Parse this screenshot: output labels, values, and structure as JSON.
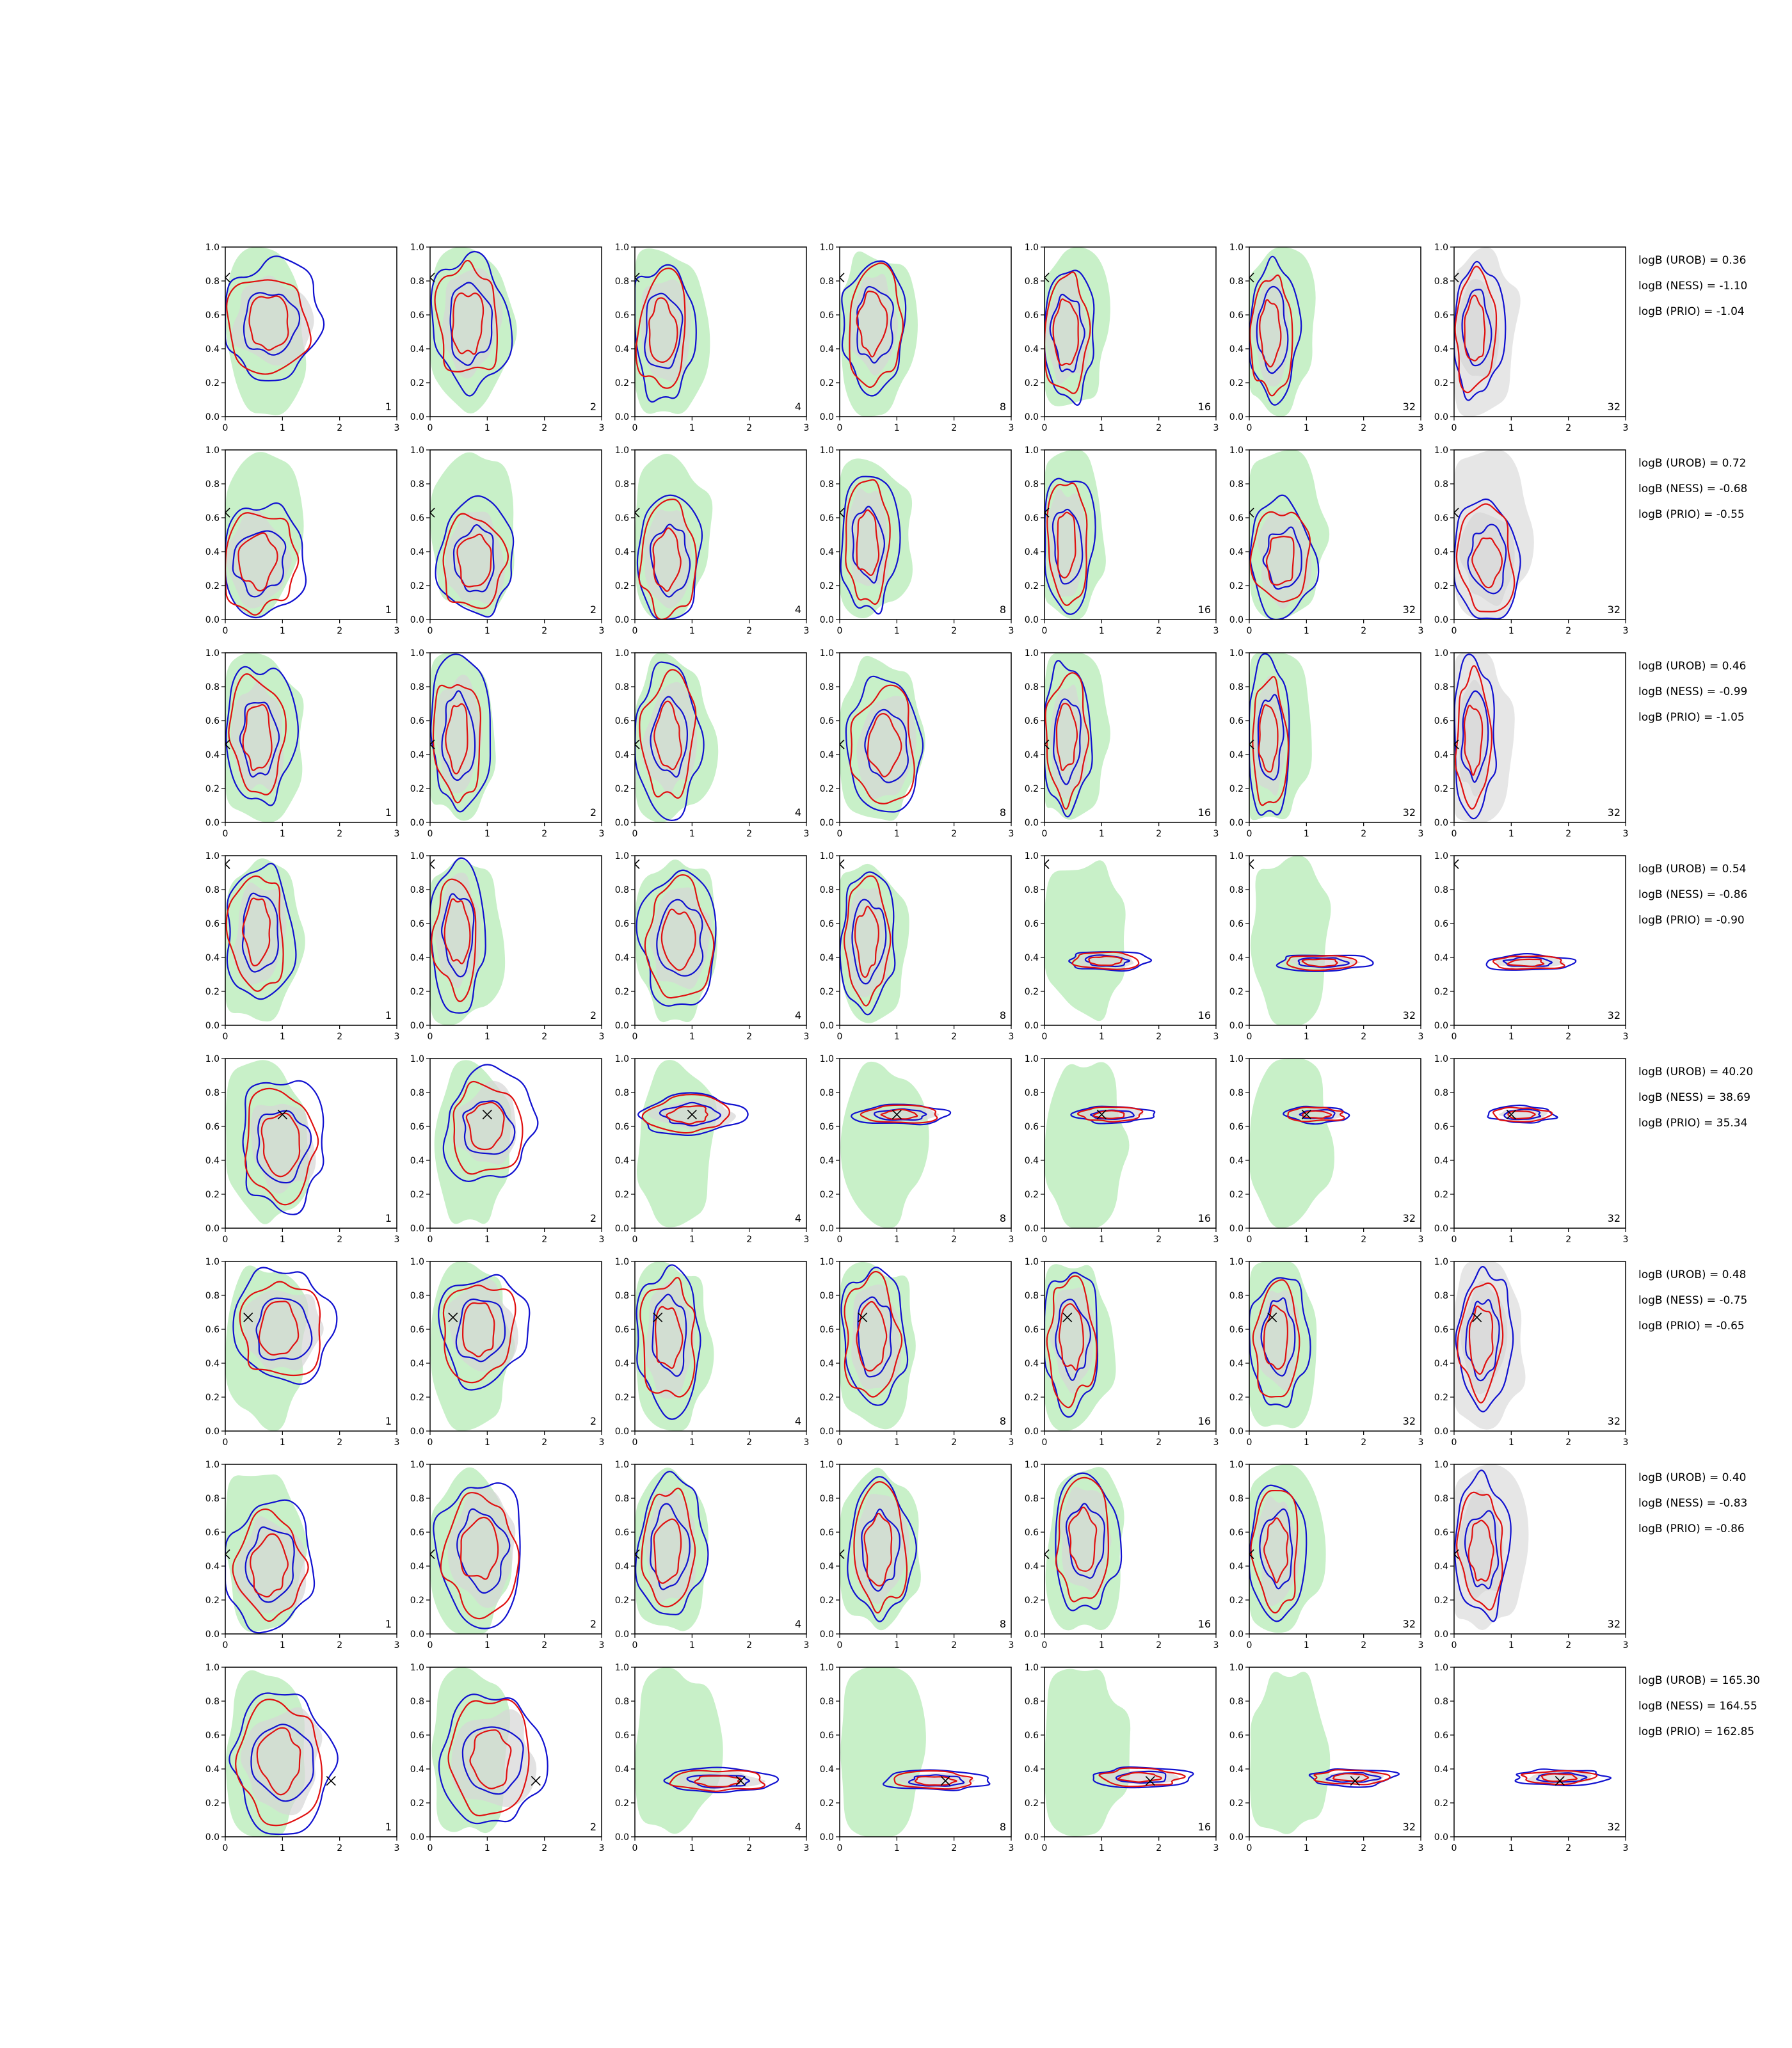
{
  "figure": {
    "colors": {
      "green_fill": "#c8f0c8",
      "gray_fill": "#d6d6d6",
      "light_gray_fill": "#e6e6e6",
      "blue": "#1010d0",
      "red": "#e01010",
      "axes": "#000000"
    },
    "axis": {
      "x_ticks": [
        "0",
        "1",
        "2",
        "3"
      ],
      "y_ticks": [
        "0.0",
        "0.2",
        "0.4",
        "0.6",
        "0.8",
        "1.0"
      ],
      "xlim": [
        0,
        3
      ],
      "ylim": [
        0,
        1
      ]
    },
    "column_counts": [
      "1",
      "2",
      "4",
      "8",
      "16",
      "32",
      "32"
    ]
  },
  "chart_data": {
    "type": "contour",
    "grid": false,
    "xlim": [
      0,
      3
    ],
    "ylim": [
      0,
      1
    ],
    "rows": [
      {
        "truth": [
          0.0,
          0.82
        ],
        "logB": [
          "logB (UROB) = 0.36",
          "logB (NESS) = -1.10",
          "logB (PRIO) = -1.04"
        ],
        "panels": [
          {
            "count": "1",
            "concentrated": false,
            "center": [
              0.8,
              0.55
            ],
            "spread": [
              0.9,
              0.35
            ]
          },
          {
            "count": "2",
            "concentrated": false,
            "center": [
              0.7,
              0.55
            ],
            "spread": [
              0.7,
              0.4
            ]
          },
          {
            "count": "4",
            "concentrated": false,
            "center": [
              0.5,
              0.5
            ],
            "spread": [
              0.6,
              0.4
            ]
          },
          {
            "count": "8",
            "concentrated": false,
            "center": [
              0.6,
              0.55
            ],
            "spread": [
              0.6,
              0.4
            ]
          },
          {
            "count": "16",
            "concentrated": false,
            "center": [
              0.4,
              0.5
            ],
            "spread": [
              0.5,
              0.42
            ]
          },
          {
            "count": "32",
            "concentrated": false,
            "center": [
              0.4,
              0.5
            ],
            "spread": [
              0.45,
              0.42
            ]
          },
          {
            "count": "32",
            "concentrated": false,
            "center": [
              0.4,
              0.5
            ],
            "spread": [
              0.45,
              0.42
            ]
          }
        ]
      },
      {
        "truth": [
          0.0,
          0.63
        ],
        "logB": [
          "logB (UROB) = 0.72",
          "logB (NESS) = -0.68",
          "logB (PRIO) = -0.55"
        ],
        "panels": [
          {
            "count": "1",
            "concentrated": false,
            "center": [
              0.6,
              0.35
            ],
            "spread": [
              0.8,
              0.35
            ]
          },
          {
            "count": "2",
            "concentrated": false,
            "center": [
              0.8,
              0.35
            ],
            "spread": [
              0.7,
              0.35
            ]
          },
          {
            "count": "4",
            "concentrated": false,
            "center": [
              0.6,
              0.35
            ],
            "spread": [
              0.6,
              0.38
            ]
          },
          {
            "count": "8",
            "concentrated": false,
            "center": [
              0.5,
              0.45
            ],
            "spread": [
              0.5,
              0.42
            ]
          },
          {
            "count": "16",
            "concentrated": false,
            "center": [
              0.4,
              0.45
            ],
            "spread": [
              0.45,
              0.42
            ]
          },
          {
            "count": "32",
            "concentrated": false,
            "center": [
              0.6,
              0.35
            ],
            "spread": [
              0.6,
              0.35
            ]
          },
          {
            "count": "32",
            "concentrated": false,
            "center": [
              0.6,
              0.35
            ],
            "spread": [
              0.6,
              0.35
            ]
          }
        ]
      },
      {
        "truth": [
          0.0,
          0.46
        ],
        "logB": [
          "logB (UROB) = 0.46",
          "logB (NESS) = -0.99",
          "logB (PRIO) = -1.05"
        ],
        "panels": [
          {
            "count": "1",
            "concentrated": false,
            "center": [
              0.6,
              0.5
            ],
            "spread": [
              0.6,
              0.42
            ]
          },
          {
            "count": "2",
            "concentrated": false,
            "center": [
              0.5,
              0.5
            ],
            "spread": [
              0.5,
              0.45
            ]
          },
          {
            "count": "4",
            "concentrated": false,
            "center": [
              0.6,
              0.5
            ],
            "spread": [
              0.6,
              0.42
            ]
          },
          {
            "count": "8",
            "concentrated": false,
            "center": [
              0.8,
              0.45
            ],
            "spread": [
              0.7,
              0.4
            ]
          },
          {
            "count": "16",
            "concentrated": false,
            "center": [
              0.4,
              0.5
            ],
            "spread": [
              0.45,
              0.45
            ]
          },
          {
            "count": "32",
            "concentrated": false,
            "center": [
              0.35,
              0.5
            ],
            "spread": [
              0.4,
              0.45
            ]
          },
          {
            "count": "32",
            "concentrated": false,
            "center": [
              0.35,
              0.5
            ],
            "spread": [
              0.4,
              0.45
            ]
          }
        ]
      },
      {
        "truth": [
          0.0,
          0.95
        ],
        "logB": [
          "logB (UROB) = 0.54",
          "logB (NESS) = -0.86",
          "logB (PRIO) = -0.90"
        ],
        "panels": [
          {
            "count": "1",
            "concentrated": false,
            "center": [
              0.6,
              0.55
            ],
            "spread": [
              0.6,
              0.42
            ]
          },
          {
            "count": "2",
            "concentrated": false,
            "center": [
              0.5,
              0.55
            ],
            "spread": [
              0.5,
              0.42
            ]
          },
          {
            "count": "4",
            "concentrated": false,
            "center": [
              0.8,
              0.5
            ],
            "spread": [
              0.7,
              0.4
            ]
          },
          {
            "count": "8",
            "concentrated": false,
            "center": [
              0.5,
              0.5
            ],
            "spread": [
              0.5,
              0.42
            ]
          },
          {
            "count": "16",
            "concentrated": true,
            "center": [
              1.1,
              0.38
            ],
            "spread": [
              0.7,
              0.06
            ]
          },
          {
            "count": "32",
            "concentrated": true,
            "center": [
              1.3,
              0.37
            ],
            "spread": [
              0.8,
              0.05
            ]
          },
          {
            "count": "32",
            "concentrated": true,
            "center": [
              1.3,
              0.37
            ],
            "spread": [
              0.8,
              0.05
            ]
          }
        ]
      },
      {
        "truth": [
          1.0,
          0.67
        ],
        "logB": [
          "logB (UROB) = 40.20",
          "logB (NESS) = 38.69",
          "logB (PRIO) = 35.34"
        ],
        "panels": [
          {
            "count": "1",
            "concentrated": false,
            "center": [
              1.0,
              0.5
            ],
            "spread": [
              0.8,
              0.38
            ]
          },
          {
            "count": "2",
            "concentrated": false,
            "center": [
              1.0,
              0.6
            ],
            "spread": [
              0.8,
              0.32
            ]
          },
          {
            "count": "4",
            "concentrated": true,
            "center": [
              1.0,
              0.67
            ],
            "spread": [
              0.9,
              0.12
            ]
          },
          {
            "count": "8",
            "concentrated": true,
            "center": [
              1.1,
              0.67
            ],
            "spread": [
              0.8,
              0.06
            ]
          },
          {
            "count": "16",
            "concentrated": true,
            "center": [
              1.2,
              0.67
            ],
            "spread": [
              0.7,
              0.05
            ]
          },
          {
            "count": "32",
            "concentrated": true,
            "center": [
              1.2,
              0.67
            ],
            "spread": [
              0.6,
              0.05
            ]
          },
          {
            "count": "32",
            "concentrated": true,
            "center": [
              1.2,
              0.67
            ],
            "spread": [
              0.6,
              0.05
            ]
          }
        ]
      },
      {
        "truth": [
          0.4,
          0.67
        ],
        "logB": [
          "logB (UROB) = 0.48",
          "logB (NESS) = -0.75",
          "logB (PRIO) = -0.65"
        ],
        "panels": [
          {
            "count": "1",
            "concentrated": false,
            "center": [
              1.0,
              0.6
            ],
            "spread": [
              0.9,
              0.35
            ]
          },
          {
            "count": "2",
            "concentrated": false,
            "center": [
              0.9,
              0.6
            ],
            "spread": [
              0.8,
              0.35
            ]
          },
          {
            "count": "4",
            "concentrated": false,
            "center": [
              0.6,
              0.55
            ],
            "spread": [
              0.6,
              0.42
            ]
          },
          {
            "count": "8",
            "concentrated": false,
            "center": [
              0.6,
              0.55
            ],
            "spread": [
              0.6,
              0.42
            ]
          },
          {
            "count": "16",
            "concentrated": false,
            "center": [
              0.5,
              0.55
            ],
            "spread": [
              0.5,
              0.42
            ]
          },
          {
            "count": "32",
            "concentrated": false,
            "center": [
              0.5,
              0.55
            ],
            "spread": [
              0.5,
              0.42
            ]
          },
          {
            "count": "32",
            "concentrated": false,
            "center": [
              0.5,
              0.55
            ],
            "spread": [
              0.5,
              0.42
            ]
          }
        ]
      },
      {
        "truth": [
          0.0,
          0.47
        ],
        "logB": [
          "logB (UROB) = 0.40",
          "logB (NESS) = -0.83",
          "logB (PRIO) = -0.86"
        ],
        "panels": [
          {
            "count": "1",
            "concentrated": false,
            "center": [
              0.8,
              0.4
            ],
            "spread": [
              0.8,
              0.4
            ]
          },
          {
            "count": "2",
            "concentrated": false,
            "center": [
              0.9,
              0.5
            ],
            "spread": [
              0.8,
              0.42
            ]
          },
          {
            "count": "4",
            "concentrated": false,
            "center": [
              0.6,
              0.5
            ],
            "spread": [
              0.6,
              0.42
            ]
          },
          {
            "count": "8",
            "concentrated": false,
            "center": [
              0.7,
              0.5
            ],
            "spread": [
              0.6,
              0.42
            ]
          },
          {
            "count": "16",
            "concentrated": false,
            "center": [
              0.7,
              0.55
            ],
            "spread": [
              0.6,
              0.42
            ]
          },
          {
            "count": "32",
            "concentrated": false,
            "center": [
              0.5,
              0.5
            ],
            "spread": [
              0.5,
              0.42
            ]
          },
          {
            "count": "32",
            "concentrated": false,
            "center": [
              0.5,
              0.5
            ],
            "spread": [
              0.5,
              0.42
            ]
          }
        ]
      },
      {
        "truth": [
          1.85,
          0.33
        ],
        "logB": [
          "logB (UROB) = 165.30",
          "logB (NESS) = 164.55",
          "logB (PRIO) = 162.85"
        ],
        "panels": [
          {
            "count": "1",
            "concentrated": false,
            "center": [
              1.0,
              0.45
            ],
            "spread": [
              0.9,
              0.4
            ]
          },
          {
            "count": "2",
            "concentrated": false,
            "center": [
              1.1,
              0.45
            ],
            "spread": [
              0.9,
              0.4
            ]
          },
          {
            "count": "4",
            "concentrated": true,
            "center": [
              1.5,
              0.33
            ],
            "spread": [
              1.0,
              0.07
            ]
          },
          {
            "count": "8",
            "concentrated": true,
            "center": [
              1.7,
              0.33
            ],
            "spread": [
              0.9,
              0.06
            ]
          },
          {
            "count": "16",
            "concentrated": true,
            "center": [
              1.7,
              0.35
            ],
            "spread": [
              0.9,
              0.06
            ]
          },
          {
            "count": "32",
            "concentrated": true,
            "center": [
              1.8,
              0.35
            ],
            "spread": [
              0.8,
              0.05
            ]
          },
          {
            "count": "32",
            "concentrated": true,
            "center": [
              1.85,
              0.35
            ],
            "spread": [
              0.8,
              0.05
            ]
          }
        ]
      }
    ]
  }
}
